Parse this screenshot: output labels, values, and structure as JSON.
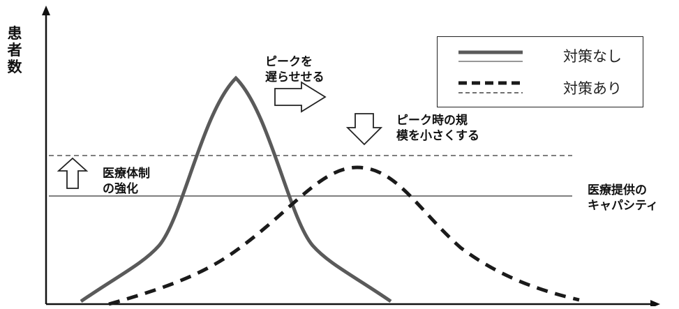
{
  "y_axis_label": "患者数",
  "annotations": {
    "delay_peak": "ピークを\n遅らせせる",
    "reduce_peak": "ピーク時の規\n模を小さくする",
    "strengthen_care": "医療体制\nの強化",
    "capacity": "医療提供の\nキャパシティ"
  },
  "legend": [
    {
      "label": "対策なし",
      "style": "solid"
    },
    {
      "label": "対策あり",
      "style": "dashed"
    }
  ],
  "colors": {
    "no_measures_curve": "#5a5a5a",
    "with_measures_curve": "#1a1a1a",
    "axis": "#111111",
    "capacity_line": "#555555"
  }
}
